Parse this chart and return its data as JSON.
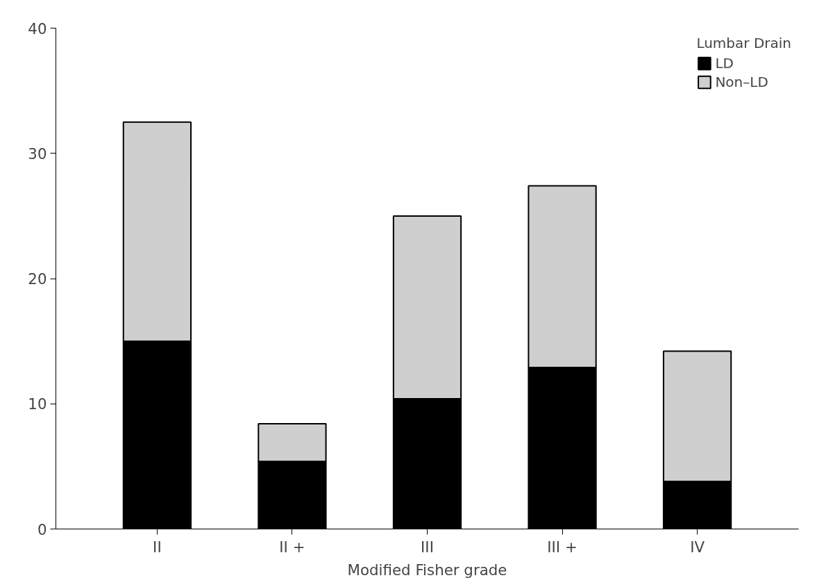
{
  "chart_data": {
    "type": "bar",
    "stacked": true,
    "xlabel": "Modified Fisher grade",
    "legend_title": "Lumbar Drain",
    "legend": "top right",
    "grid": false,
    "categories": [
      "II",
      "II +",
      "III",
      "III +",
      "IV"
    ],
    "series": [
      {
        "name": "LD",
        "color": "#000000",
        "values": [
          15,
          5.4,
          10.4,
          12.9,
          3.8
        ]
      },
      {
        "name": "Non–LD",
        "color": "#cfcfcf",
        "values": [
          17.5,
          3.0,
          14.6,
          14.5,
          10.4
        ]
      }
    ],
    "ylim": [
      0,
      40
    ],
    "yticks": [
      0,
      10,
      20,
      30,
      40
    ]
  }
}
